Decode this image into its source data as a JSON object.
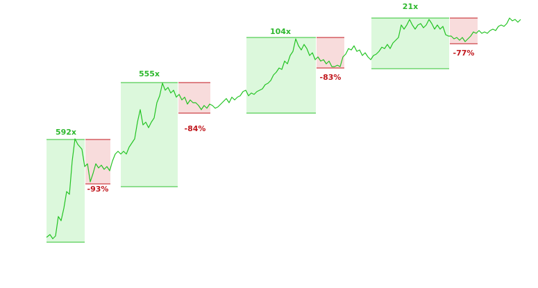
{
  "gains": [
    "592x",
    "555x",
    "104x",
    "21x"
  ],
  "drawdowns": [
    "-93%",
    "-84%",
    "-83%",
    "-77%"
  ]
}
